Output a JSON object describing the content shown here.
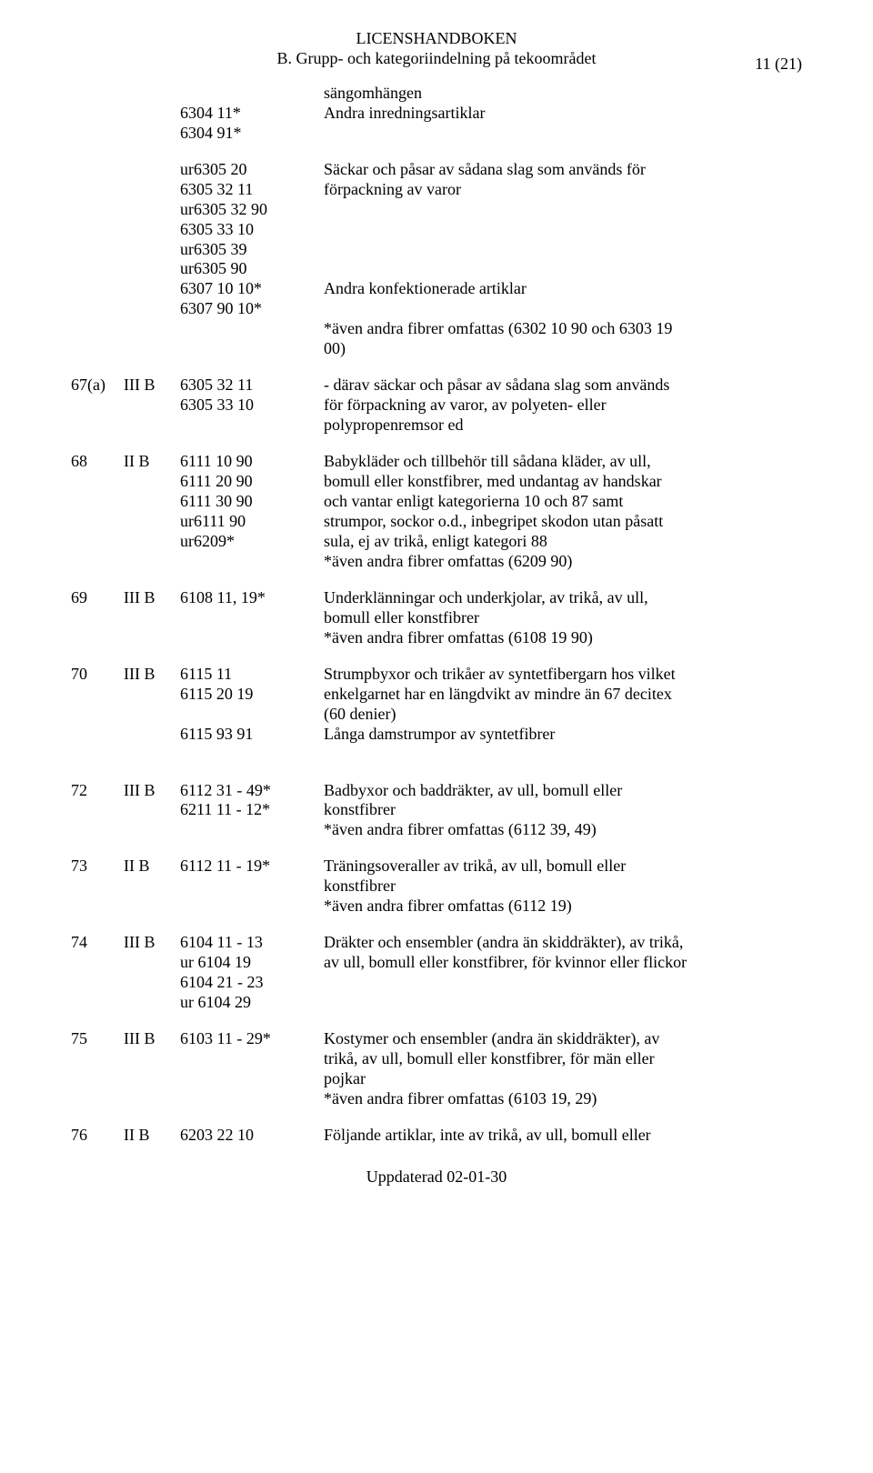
{
  "header": {
    "title1": "LICENSHANDBOKEN",
    "title2": "B. Grupp- och kategoriindelning på tekoområdet",
    "page": "11 (21)"
  },
  "footer": "Uppdaterad  02-01-30",
  "top_block": {
    "codes": [
      "6304 11*",
      "6304 91*"
    ],
    "descs": [
      "sängomhängen",
      "Andra inredningsartiklar"
    ]
  },
  "block_6305": {
    "codes": [
      "ur6305 20",
      "6305 32 11",
      "ur6305 32 90",
      "6305 33 10",
      "ur6305 39",
      "ur6305 90",
      "6307 10 10*",
      "6307 90 10*"
    ],
    "desc_line1": "Säckar och påsar av sådana slag som används för",
    "desc_line2": "förpackning av varor",
    "desc_andra": "Andra konfektionerade artiklar",
    "desc_aven1": "*även andra fibrer omfattas (6302 10 90 och 6303 19",
    "desc_aven2": "00)"
  },
  "entries": [
    {
      "cat": "67(a)",
      "grp": "III B",
      "codes": [
        "6305 32 11",
        "6305 33 10"
      ],
      "descs": [
        "- därav säckar och påsar av sådana slag som används",
        "för förpackning av varor, av polyeten- eller",
        "polypropenremsor ed"
      ]
    },
    {
      "cat": "68",
      "grp": "II B",
      "codes": [
        "6111 10 90",
        "6111 20 90",
        "6111 30 90",
        "ur6111 90",
        "ur6209*"
      ],
      "descs": [
        "Babykläder och tillbehör till sådana kläder, av ull,",
        "bomull eller konstfibrer, med undantag av handskar",
        "och vantar enligt kategorierna 10 och 87 samt",
        "strumpor, sockor o.d., inbegripet skodon utan påsatt",
        "sula, ej av trikå, enligt kategori 88",
        "*även andra fibrer omfattas (6209 90)"
      ]
    },
    {
      "cat": "69",
      "grp": "III B",
      "codes": [
        "6108 11, 19*"
      ],
      "descs": [
        "Underklänningar och underkjolar, av trikå, av ull,",
        "bomull eller konstfibrer",
        "*även andra fibrer omfattas (6108 19 90)"
      ]
    },
    {
      "cat": "70",
      "grp": "III B",
      "codes": [
        "6115 11",
        "6115 20 19",
        "",
        "6115 93 91"
      ],
      "descs": [
        "Strumpbyxor och trikåer av syntetfibergarn hos vilket",
        "enkelgarnet har en längdvikt av mindre än 67 decitex",
        "(60 denier)",
        "Långa damstrumpor av syntetfibrer"
      ]
    },
    {
      "cat": "72",
      "grp": "III B",
      "codes": [
        "6112 31 - 49*",
        "6211 11 - 12*"
      ],
      "descs": [
        "Badbyxor och baddräkter, av ull, bomull eller",
        "konstfibrer",
        "*även andra fibrer omfattas (6112 39, 49)"
      ]
    },
    {
      "cat": "73",
      "grp": "II B",
      "codes": [
        "6112 11 - 19*"
      ],
      "descs": [
        "Träningsoveraller av trikå, av ull, bomull eller",
        "konstfibrer",
        "*även andra fibrer omfattas (6112 19)"
      ]
    },
    {
      "cat": "74",
      "grp": "III B",
      "codes": [
        "6104 11 - 13",
        "ur 6104 19",
        "6104 21 - 23",
        "ur 6104 29"
      ],
      "descs": [
        "Dräkter och ensembler (andra än skiddräkter), av trikå,",
        "av ull, bomull eller konstfibrer, för kvinnor eller flickor"
      ]
    },
    {
      "cat": "75",
      "grp": "III B",
      "codes": [
        "6103 11 - 29*"
      ],
      "descs": [
        "Kostymer och ensembler (andra än skiddräkter), av",
        "trikå, av ull, bomull eller konstfibrer, för män eller",
        "pojkar",
        "*även andra fibrer omfattas (6103 19, 29)"
      ]
    },
    {
      "cat": "76",
      "grp": "II B",
      "codes": [
        "6203 22 10"
      ],
      "descs": [
        "Följande artiklar, inte av trikå, av ull, bomull eller"
      ]
    }
  ]
}
